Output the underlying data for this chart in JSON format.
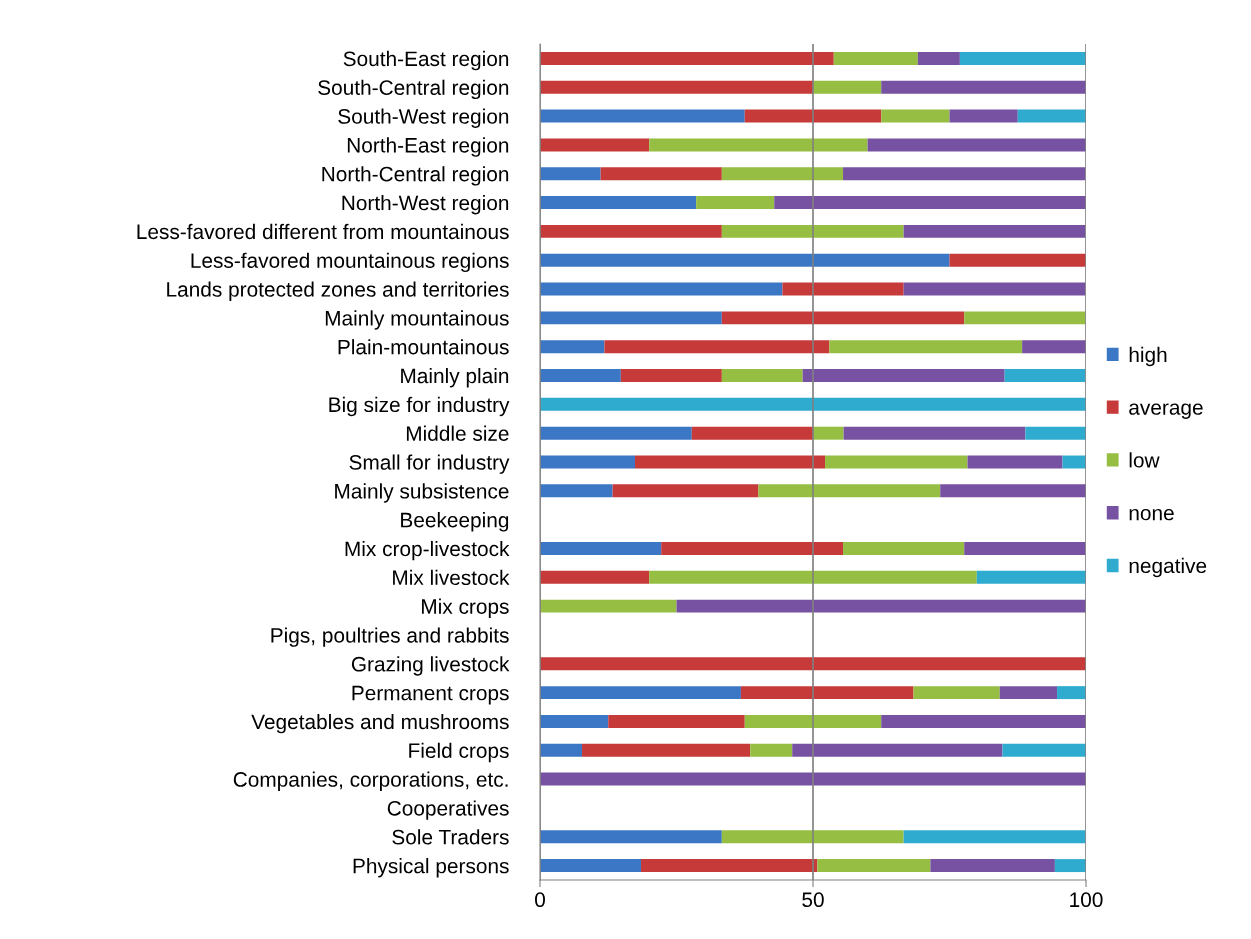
{
  "chart_data": {
    "type": "bar",
    "orientation": "horizontal",
    "stacked": true,
    "categories": [
      "South-East region",
      "South-Central region",
      "South-West region",
      "North-East region",
      "North-Central region",
      "North-West region",
      "Less-favored different from mountainous",
      "Less-favored mountainous regions",
      "Lands protected zones and territories",
      "Mainly mountainous",
      "Plain-mountainous",
      "Mainly plain",
      "Big size for industry",
      "Middle size",
      "Small for industry",
      "Mainly subsistence",
      "Beekeeping",
      "Mix crop-livestock",
      "Mix livestock",
      "Mix crops",
      "Pigs, poultries and rabbits",
      "Grazing livestock",
      "Permanent crops",
      "Vegetables and mushrooms",
      "Field crops",
      "Companies, corporations, etc.",
      "Cooperatives",
      "Sole Traders",
      "Physical persons"
    ],
    "series": [
      {
        "name": "high",
        "color": "#3b77c4",
        "values": [
          0,
          0,
          37.5,
          0,
          11.1,
          28.6,
          0,
          75,
          44.4,
          33.3,
          11.8,
          14.8,
          0,
          27.8,
          17.4,
          13.3,
          null,
          22.2,
          0,
          0,
          null,
          0,
          36.8,
          12.5,
          7.7,
          0,
          null,
          33.3,
          18.5
        ]
      },
      {
        "name": "average",
        "color": "#c63a3a",
        "values": [
          53.8,
          50,
          25,
          20,
          22.2,
          0,
          33.3,
          25,
          22.2,
          44.4,
          41.2,
          18.5,
          0,
          22.2,
          34.8,
          26.7,
          null,
          33.3,
          20,
          0,
          null,
          100,
          31.6,
          25,
          30.8,
          0,
          null,
          0,
          32.3
        ]
      },
      {
        "name": "low",
        "color": "#95be42",
        "values": [
          15.4,
          12.5,
          12.5,
          40,
          22.2,
          14.3,
          33.3,
          0,
          0,
          22.2,
          35.3,
          14.8,
          0,
          5.6,
          26.1,
          33.3,
          null,
          22.2,
          60,
          25,
          null,
          0,
          15.8,
          25,
          7.7,
          0,
          null,
          33.3,
          20.7
        ]
      },
      {
        "name": "none",
        "color": "#7752a2",
        "values": [
          7.7,
          37.5,
          12.5,
          40,
          44.4,
          57.1,
          33.3,
          0,
          33.3,
          0,
          11.8,
          37,
          0,
          33.3,
          17.4,
          26.7,
          null,
          22.2,
          0,
          75,
          null,
          0,
          10.5,
          37.5,
          38.5,
          100,
          null,
          0,
          22.8
        ]
      },
      {
        "name": "negative",
        "color": "#2fabcf",
        "values": [
          23.1,
          0,
          12.5,
          0,
          0,
          0,
          0,
          0,
          0,
          0,
          0,
          14.8,
          100,
          11.1,
          4.3,
          0,
          null,
          0,
          20,
          0,
          null,
          0,
          5.3,
          0,
          15.4,
          0,
          null,
          33.3,
          5.7
        ]
      }
    ],
    "xlim": [
      0,
      100
    ],
    "xticks": [
      0,
      50,
      100
    ],
    "grid": "x",
    "legend": "right"
  }
}
